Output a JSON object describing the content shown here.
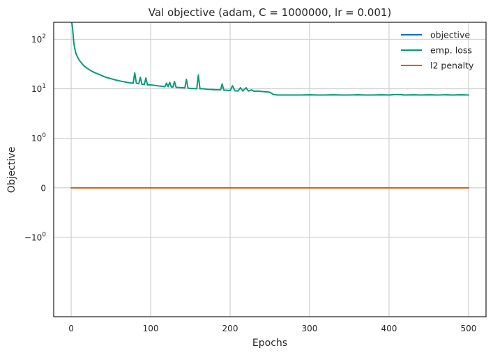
{
  "chart_data": {
    "type": "line",
    "title": "Val objective (adam, C = 1000000, lr = 0.001)",
    "xlabel": "Epochs",
    "ylabel": "Objective",
    "xlim": [
      -22,
      522
    ],
    "ylim": [
      -40,
      220
    ],
    "yscale": "symlog",
    "ylinthresh": 1,
    "grid": true,
    "legend_position": "top-right",
    "x_ticks": [
      {
        "value": 0,
        "label": "0"
      },
      {
        "value": 100,
        "label": "100"
      },
      {
        "value": 200,
        "label": "200"
      },
      {
        "value": 300,
        "label": "300"
      },
      {
        "value": 400,
        "label": "400"
      },
      {
        "value": 500,
        "label": "500"
      }
    ],
    "y_ticks": [
      {
        "value": 100,
        "base": "10",
        "exp": "2",
        "sign": ""
      },
      {
        "value": 10,
        "base": "10",
        "exp": "1",
        "sign": ""
      },
      {
        "value": 1,
        "base": "10",
        "exp": "0",
        "sign": ""
      },
      {
        "value": 0,
        "base": "0",
        "exp": "",
        "sign": ""
      },
      {
        "value": -1,
        "base": "10",
        "exp": "0",
        "sign": "−"
      }
    ],
    "series": [
      {
        "name": "objective",
        "color": "#0072b2",
        "points": [
          [
            0,
            220
          ],
          [
            1,
            210
          ],
          [
            2,
            150
          ],
          [
            3,
            95
          ],
          [
            4,
            72
          ],
          [
            5,
            60
          ],
          [
            6,
            52
          ],
          [
            8,
            44
          ],
          [
            10,
            38
          ],
          [
            13,
            33
          ],
          [
            16,
            29
          ],
          [
            20,
            26
          ],
          [
            25,
            23
          ],
          [
            30,
            21
          ],
          [
            35,
            19.5
          ],
          [
            40,
            18
          ],
          [
            45,
            16.8
          ],
          [
            50,
            16
          ],
          [
            55,
            15.2
          ],
          [
            60,
            14.5
          ],
          [
            65,
            14
          ],
          [
            70,
            13.5
          ],
          [
            75,
            13.1
          ],
          [
            78,
            13
          ],
          [
            80,
            21
          ],
          [
            82,
            13
          ],
          [
            85,
            12.6
          ],
          [
            87,
            17
          ],
          [
            89,
            12.4
          ],
          [
            92,
            12.2
          ],
          [
            94,
            16.5
          ],
          [
            96,
            12
          ],
          [
            100,
            12
          ],
          [
            105,
            11.7
          ],
          [
            110,
            11.4
          ],
          [
            115,
            11.2
          ],
          [
            118,
            11
          ],
          [
            120,
            13
          ],
          [
            122,
            11
          ],
          [
            124,
            13.5
          ],
          [
            126,
            10.9
          ],
          [
            128,
            10.8
          ],
          [
            130,
            14
          ],
          [
            132,
            10.7
          ],
          [
            136,
            10.6
          ],
          [
            140,
            10.5
          ],
          [
            143,
            10.4
          ],
          [
            145,
            15.5
          ],
          [
            147,
            10.3
          ],
          [
            150,
            10.2
          ],
          [
            155,
            10.1
          ],
          [
            158,
            10
          ],
          [
            160,
            19
          ],
          [
            162,
            10
          ],
          [
            166,
            10
          ],
          [
            170,
            9.8
          ],
          [
            175,
            9.7
          ],
          [
            180,
            9.6
          ],
          [
            185,
            9.5
          ],
          [
            188,
            9.5
          ],
          [
            190,
            12.5
          ],
          [
            192,
            9.4
          ],
          [
            196,
            9.3
          ],
          [
            200,
            9.2
          ],
          [
            203,
            11.5
          ],
          [
            206,
            9.1
          ],
          [
            210,
            9
          ],
          [
            213,
            10.5
          ],
          [
            216,
            9
          ],
          [
            220,
            10.5
          ],
          [
            223,
            9
          ],
          [
            227,
            9.5
          ],
          [
            230,
            8.9
          ],
          [
            235,
            9
          ],
          [
            240,
            8.8
          ],
          [
            245,
            8.7
          ],
          [
            250,
            8.5
          ],
          [
            255,
            7.6
          ],
          [
            260,
            7.5
          ],
          [
            270,
            7.5
          ],
          [
            280,
            7.5
          ],
          [
            290,
            7.5
          ],
          [
            300,
            7.55
          ],
          [
            310,
            7.5
          ],
          [
            320,
            7.5
          ],
          [
            330,
            7.55
          ],
          [
            340,
            7.5
          ],
          [
            350,
            7.5
          ],
          [
            360,
            7.55
          ],
          [
            370,
            7.5
          ],
          [
            380,
            7.5
          ],
          [
            390,
            7.55
          ],
          [
            400,
            7.5
          ],
          [
            410,
            7.65
          ],
          [
            420,
            7.5
          ],
          [
            430,
            7.55
          ],
          [
            440,
            7.5
          ],
          [
            450,
            7.55
          ],
          [
            460,
            7.5
          ],
          [
            470,
            7.55
          ],
          [
            480,
            7.5
          ],
          [
            490,
            7.55
          ],
          [
            500,
            7.5
          ]
        ]
      },
      {
        "name": "emp. loss",
        "color": "#009e73",
        "points": [
          [
            0,
            220
          ],
          [
            1,
            210
          ],
          [
            2,
            150
          ],
          [
            3,
            95
          ],
          [
            4,
            72
          ],
          [
            5,
            60
          ],
          [
            6,
            52
          ],
          [
            8,
            44
          ],
          [
            10,
            38
          ],
          [
            13,
            33
          ],
          [
            16,
            29
          ],
          [
            20,
            26
          ],
          [
            25,
            23
          ],
          [
            30,
            21
          ],
          [
            35,
            19.5
          ],
          [
            40,
            18
          ],
          [
            45,
            16.8
          ],
          [
            50,
            16
          ],
          [
            55,
            15.2
          ],
          [
            60,
            14.5
          ],
          [
            65,
            14
          ],
          [
            70,
            13.5
          ],
          [
            75,
            13.1
          ],
          [
            78,
            13
          ],
          [
            80,
            21
          ],
          [
            82,
            13
          ],
          [
            85,
            12.6
          ],
          [
            87,
            17
          ],
          [
            89,
            12.4
          ],
          [
            92,
            12.2
          ],
          [
            94,
            16.5
          ],
          [
            96,
            12
          ],
          [
            100,
            12
          ],
          [
            105,
            11.7
          ],
          [
            110,
            11.4
          ],
          [
            115,
            11.2
          ],
          [
            118,
            11
          ],
          [
            120,
            13
          ],
          [
            122,
            11
          ],
          [
            124,
            13.5
          ],
          [
            126,
            10.9
          ],
          [
            128,
            10.8
          ],
          [
            130,
            14
          ],
          [
            132,
            10.7
          ],
          [
            136,
            10.6
          ],
          [
            140,
            10.5
          ],
          [
            143,
            10.4
          ],
          [
            145,
            15.5
          ],
          [
            147,
            10.3
          ],
          [
            150,
            10.2
          ],
          [
            155,
            10.1
          ],
          [
            158,
            10
          ],
          [
            160,
            19
          ],
          [
            162,
            10
          ],
          [
            166,
            10
          ],
          [
            170,
            9.8
          ],
          [
            175,
            9.7
          ],
          [
            180,
            9.6
          ],
          [
            185,
            9.5
          ],
          [
            188,
            9.5
          ],
          [
            190,
            12.5
          ],
          [
            192,
            9.4
          ],
          [
            196,
            9.3
          ],
          [
            200,
            9.2
          ],
          [
            203,
            11.5
          ],
          [
            206,
            9.1
          ],
          [
            210,
            9
          ],
          [
            213,
            10.5
          ],
          [
            216,
            9
          ],
          [
            220,
            10.5
          ],
          [
            223,
            9
          ],
          [
            227,
            9.5
          ],
          [
            230,
            8.9
          ],
          [
            235,
            9
          ],
          [
            240,
            8.8
          ],
          [
            245,
            8.7
          ],
          [
            250,
            8.5
          ],
          [
            255,
            7.6
          ],
          [
            260,
            7.5
          ],
          [
            270,
            7.5
          ],
          [
            280,
            7.5
          ],
          [
            290,
            7.5
          ],
          [
            300,
            7.55
          ],
          [
            310,
            7.5
          ],
          [
            320,
            7.5
          ],
          [
            330,
            7.55
          ],
          [
            340,
            7.5
          ],
          [
            350,
            7.5
          ],
          [
            360,
            7.55
          ],
          [
            370,
            7.5
          ],
          [
            380,
            7.5
          ],
          [
            390,
            7.55
          ],
          [
            400,
            7.5
          ],
          [
            410,
            7.65
          ],
          [
            420,
            7.5
          ],
          [
            430,
            7.55
          ],
          [
            440,
            7.5
          ],
          [
            450,
            7.55
          ],
          [
            460,
            7.5
          ],
          [
            470,
            7.55
          ],
          [
            480,
            7.5
          ],
          [
            490,
            7.55
          ],
          [
            500,
            7.5
          ]
        ]
      },
      {
        "name": "l2 penalty",
        "color": "#d55e00",
        "points": [
          [
            0,
            0
          ],
          [
            500,
            0
          ]
        ]
      }
    ]
  }
}
